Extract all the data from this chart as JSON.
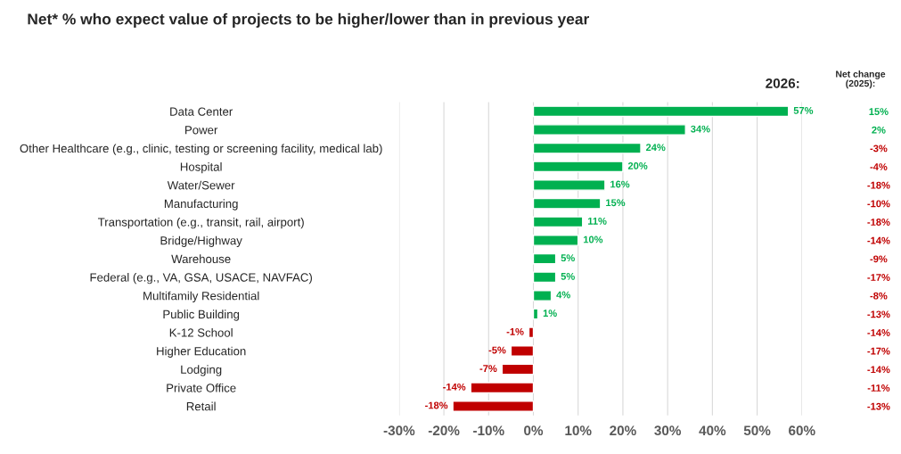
{
  "chart_data": {
    "type": "bar",
    "orientation": "horizontal",
    "title": "Net* % who expect value of projects to be higher/lower than in previous year",
    "categories": [
      "Data Center",
      "Power",
      "Other Healthcare (e.g., clinic, testing or screening facility, medical lab)",
      "Hospital",
      "Water/Sewer",
      "Manufacturing",
      "Transportation (e.g., transit, rail, airport)",
      "Bridge/Highway",
      "Warehouse",
      "Federal (e.g., VA, GSA, USACE, NAVFAC)",
      "Multifamily Residential",
      "Public Building",
      "K-12 School",
      "Higher Education",
      "Lodging",
      "Private Office",
      "Retail"
    ],
    "values": [
      57,
      34,
      24,
      20,
      16,
      15,
      11,
      10,
      5,
      5,
      4,
      1,
      -1,
      -5,
      -7,
      -14,
      -18
    ],
    "value_labels": [
      "57%",
      "34%",
      "24%",
      "20%",
      "16%",
      "15%",
      "11%",
      "10%",
      "5%",
      "5%",
      "4%",
      "1%",
      "-1%",
      "-5%",
      "-7%",
      "-14%",
      "-18%"
    ],
    "colors": [
      "#00b050",
      "#00b050",
      "#00b050",
      "#00b050",
      "#00b050",
      "#00b050",
      "#00b050",
      "#00b050",
      "#00b050",
      "#00b050",
      "#00b050",
      "#00b050",
      "#c00000",
      "#c00000",
      "#c00000",
      "#c00000",
      "#c00000"
    ],
    "y2_categories": [
      "15%",
      "2%",
      "-3%",
      "-4%",
      "-18%",
      "-10%",
      "-18%",
      "-14%",
      "-9%",
      "-17%",
      "-8%",
      "-13%",
      "-14%",
      "-17%",
      "-14%",
      "-11%",
      "-13%"
    ],
    "xlim": [
      -30,
      60
    ],
    "xticks": [
      {
        "value": -30,
        "label": "-30%"
      },
      {
        "value": -20,
        "label": "-20%"
      },
      {
        "value": -10,
        "label": "-10%"
      },
      {
        "value": 0,
        "label": "0%"
      },
      {
        "value": 10,
        "label": "10%"
      },
      {
        "value": 20,
        "label": "20%"
      },
      {
        "value": 30,
        "label": "30%"
      },
      {
        "value": 40,
        "label": "40%"
      },
      {
        "value": 50,
        "label": "50%"
      },
      {
        "value": 60,
        "label": "60%"
      }
    ],
    "grid": "x",
    "annotations": [
      "2026:",
      "Net change\n(2025):"
    ]
  }
}
